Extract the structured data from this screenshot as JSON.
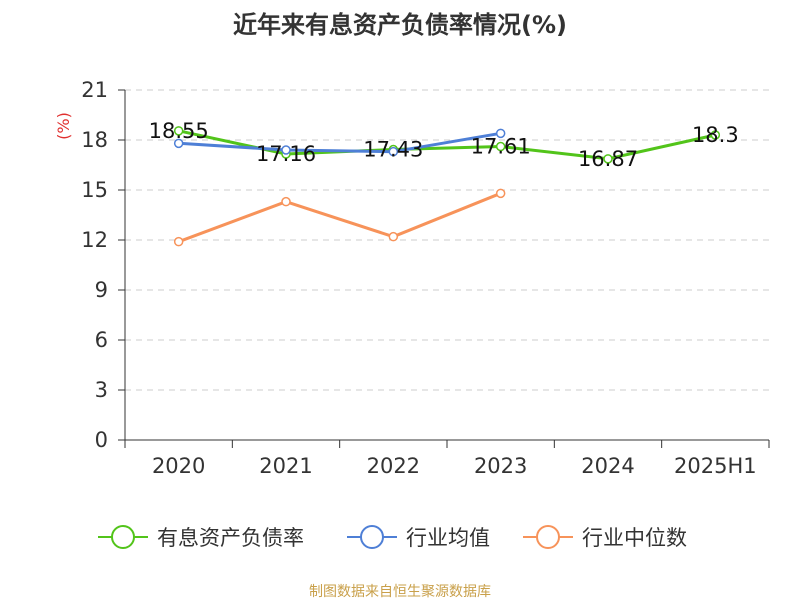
{
  "chart_data": {
    "type": "line",
    "title": "近年来有息资产负债率情况(%)",
    "ylabel": "(%)",
    "categories": [
      "2020",
      "2021",
      "2022",
      "2023",
      "2024",
      "2025H1"
    ],
    "yticks": [
      0,
      3,
      6,
      9,
      12,
      15,
      18,
      21
    ],
    "ylim": [
      0,
      21
    ],
    "grid": true,
    "legend_position": "bottom",
    "series": [
      {
        "name": "有息资产负债率",
        "color": "#52c41a",
        "values": [
          18.55,
          17.16,
          17.43,
          17.61,
          16.87,
          18.3
        ],
        "labels": [
          "18.55",
          "17.16",
          "17.43",
          "17.61",
          "16.87",
          "18.3"
        ]
      },
      {
        "name": "行业均值",
        "color": "#4e7fd6",
        "values": [
          17.8,
          17.4,
          17.3,
          18.4,
          null,
          null
        ]
      },
      {
        "name": "行业中位数",
        "color": "#f7935a",
        "values": [
          11.9,
          14.3,
          12.2,
          14.8,
          null,
          null
        ]
      }
    ]
  },
  "source_text": "制图数据来自恒生聚源数据库"
}
